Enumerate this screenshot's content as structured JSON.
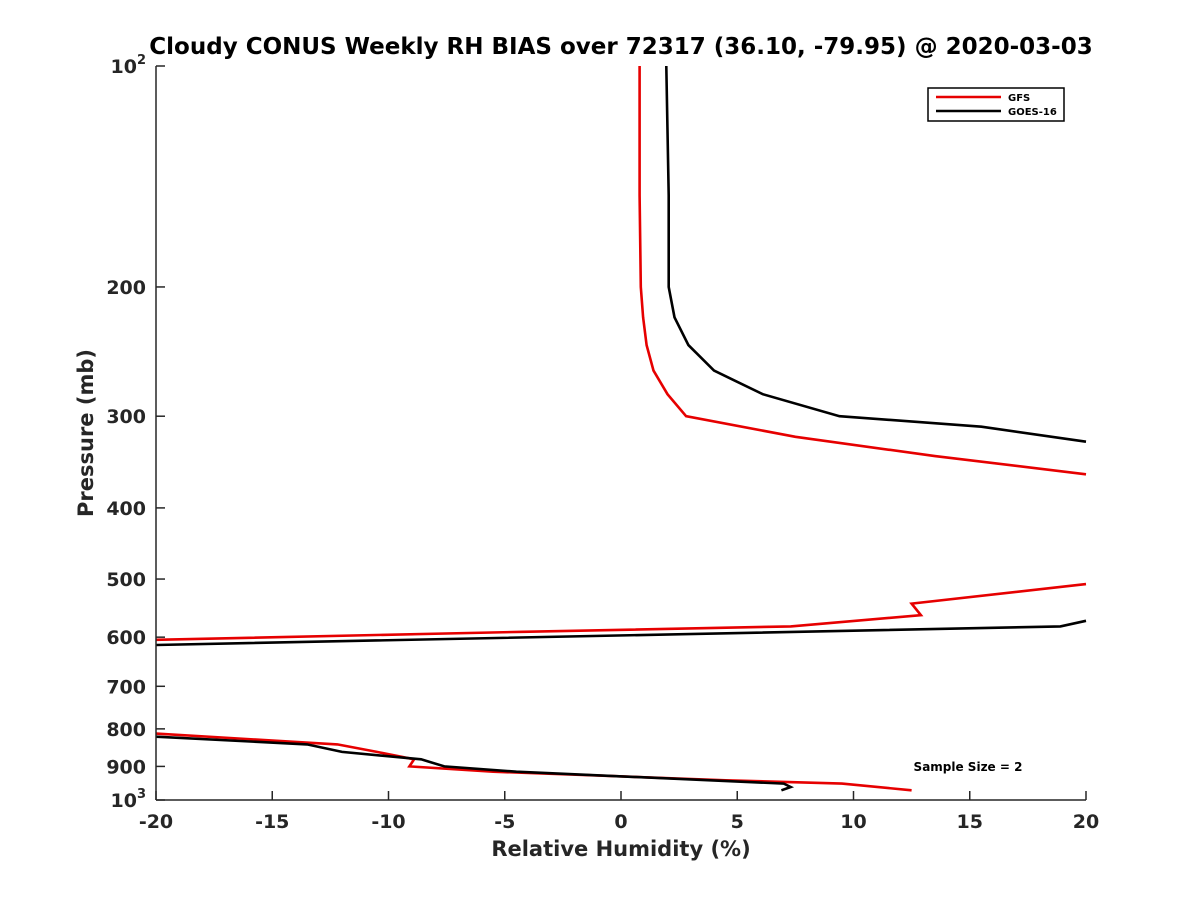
{
  "chart_data": {
    "type": "line",
    "title": "Cloudy CONUS Weekly RH BIAS over 72317 (36.10, -79.95) @ 2020-03-03",
    "xlabel": "Relative Humidity (%)",
    "ylabel": "Pressure (mb)",
    "xlim": [
      -20,
      20
    ],
    "ylim": [
      100,
      1000
    ],
    "yscale": "log",
    "y_reversed": true,
    "x_ticks": [
      "-20",
      "-15",
      "-10",
      "-5",
      "0",
      "5",
      "10",
      "15",
      "20"
    ],
    "y_ticks": [
      {
        "value": 100,
        "base": "10",
        "exp": "2"
      },
      {
        "value": 200,
        "label": "200"
      },
      {
        "value": 300,
        "label": "300"
      },
      {
        "value": 400,
        "label": "400"
      },
      {
        "value": 500,
        "label": "500"
      },
      {
        "value": 600,
        "label": "600"
      },
      {
        "value": 700,
        "label": "700"
      },
      {
        "value": 800,
        "label": "800"
      },
      {
        "value": 900,
        "label": "900"
      },
      {
        "value": 1000,
        "base": "10",
        "exp": "3"
      }
    ],
    "grid": false,
    "legend_position": "top-right",
    "annotation": "Sample Size = 2",
    "series": [
      {
        "name": "GFS",
        "color": "#e60000",
        "segments": [
          [
            [
              0.8,
              100
            ],
            [
              0.8,
              150
            ],
            [
              0.85,
              200
            ],
            [
              0.95,
              220
            ],
            [
              1.1,
              240
            ],
            [
              1.4,
              260
            ],
            [
              2.0,
              280
            ],
            [
              2.8,
              300
            ],
            [
              7.5,
              320
            ],
            [
              13.5,
              340
            ],
            [
              20,
              360
            ]
          ],
          [
            [
              20,
              508
            ],
            [
              12.5,
              540
            ],
            [
              12.9,
              560
            ],
            [
              7.3,
              580
            ],
            [
              -4.2,
              590
            ],
            [
              -20,
              605
            ]
          ],
          [
            [
              -20,
              812
            ],
            [
              -12.2,
              840
            ],
            [
              -10.5,
              860
            ],
            [
              -8.9,
              880
            ],
            [
              -9.1,
              900
            ],
            [
              -5.5,
              915
            ],
            [
              -1.5,
              925
            ],
            [
              4.5,
              940
            ],
            [
              9.5,
              950
            ],
            [
              12.5,
              970
            ]
          ]
        ]
      },
      {
        "name": "GOES-16",
        "color": "#000000",
        "segments": [
          [
            [
              1.95,
              100
            ],
            [
              2.05,
              150
            ],
            [
              2.05,
              200
            ],
            [
              2.3,
              220
            ],
            [
              2.9,
              240
            ],
            [
              4.0,
              260
            ],
            [
              6.1,
              280
            ],
            [
              9.4,
              300
            ],
            [
              15.5,
              310
            ],
            [
              20,
              325
            ]
          ],
          [
            [
              20,
              570
            ],
            [
              18.9,
              580
            ],
            [
              -20,
              615
            ]
          ],
          [
            [
              -20,
              820
            ],
            [
              -13.5,
              840
            ],
            [
              -12.0,
              860
            ],
            [
              -8.6,
              880
            ],
            [
              -7.6,
              900
            ],
            [
              -4.5,
              915
            ],
            [
              7.0,
              950
            ],
            [
              7.3,
              960
            ],
            [
              6.9,
              970
            ]
          ]
        ]
      }
    ]
  }
}
